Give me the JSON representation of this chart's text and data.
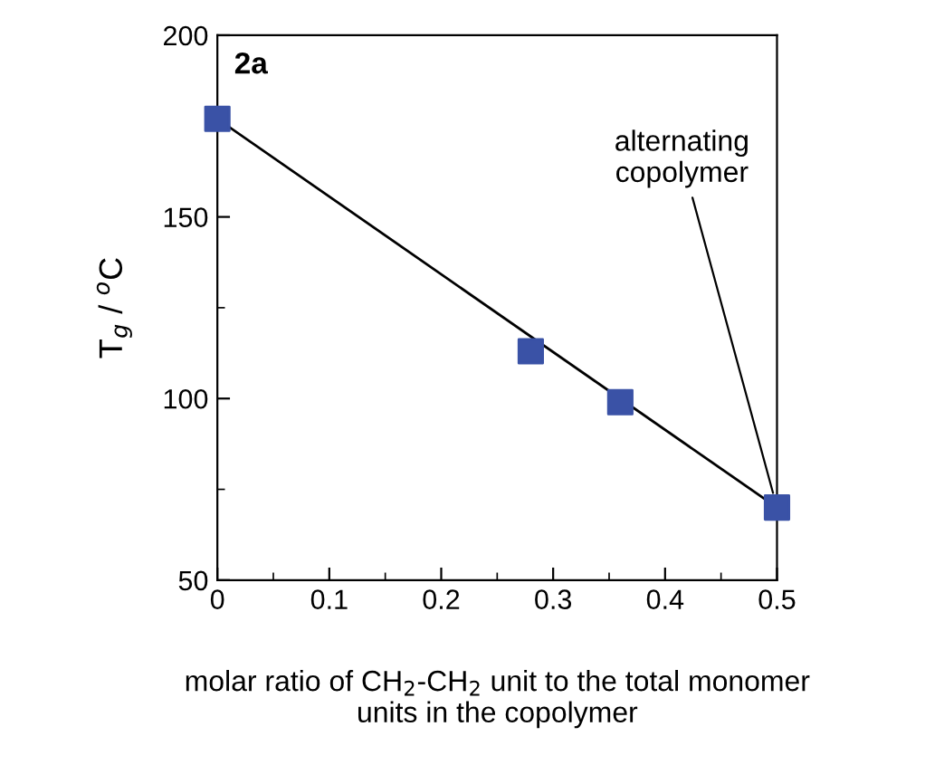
{
  "chart_data": {
    "type": "scatter",
    "xlabel": "molar ratio of CH$_{2}$-CH$_{2}$ unit to the total monomer\nunits in the copolymer",
    "ylabel": "T$_{g}$ / $^{o}$C",
    "x": [
      0,
      0.28,
      0.36,
      0.5
    ],
    "series": [
      {
        "color": "#3a52a6",
        "values": [
          177,
          113,
          99,
          70
        ],
        "marker": "square"
      },
      {
        "type": "line",
        "color": "#000000",
        "x": [
          0,
          0.5
        ],
        "values": [
          177,
          70
        ],
        "marker": "none",
        "line_style": "solid"
      }
    ],
    "xlim": [
      0,
      0.5
    ],
    "ylim": [
      50,
      200
    ],
    "xticks": [
      0,
      0.1,
      0.2,
      0.3,
      0.4,
      0.5
    ],
    "yticks": [
      50,
      100,
      150,
      200
    ],
    "annotations": [
      "2a",
      {
        "text": "alternating\ncopolymer",
        "x": 0.5,
        "y": 70
      }
    ],
    "grid": false,
    "legend": false
  }
}
